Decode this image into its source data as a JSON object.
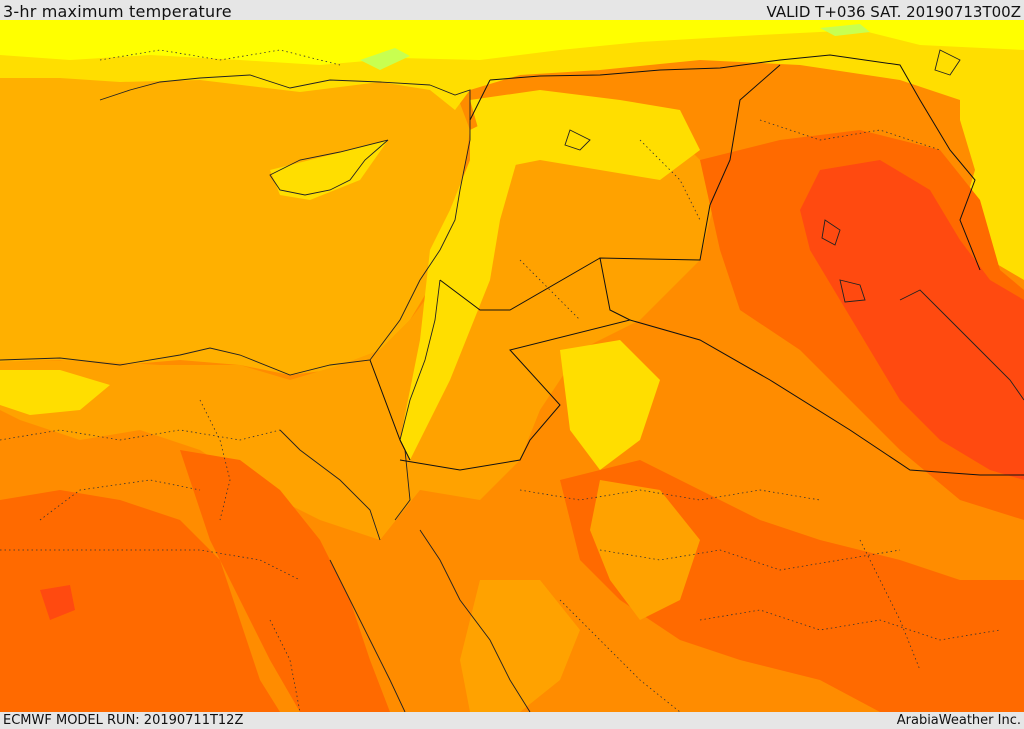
{
  "header": {
    "title": "3-hr maximum temperature",
    "valid": "VALID T+036 SAT. 20190713T00Z"
  },
  "footer": {
    "model_run": "ECMWF MODEL RUN: 20190711T12Z",
    "credit": "ArabiaWeather Inc."
  },
  "map": {
    "colors": {
      "sea_orange": "#ffb000",
      "orange_light": "#ffa200",
      "orange": "#ff8c00",
      "orange_dark": "#ff6a00",
      "red_orange": "#ff4a10",
      "yellow": "#ffde00",
      "bright_yellow": "#ffff00",
      "light_green": "#c8ff50"
    }
  }
}
